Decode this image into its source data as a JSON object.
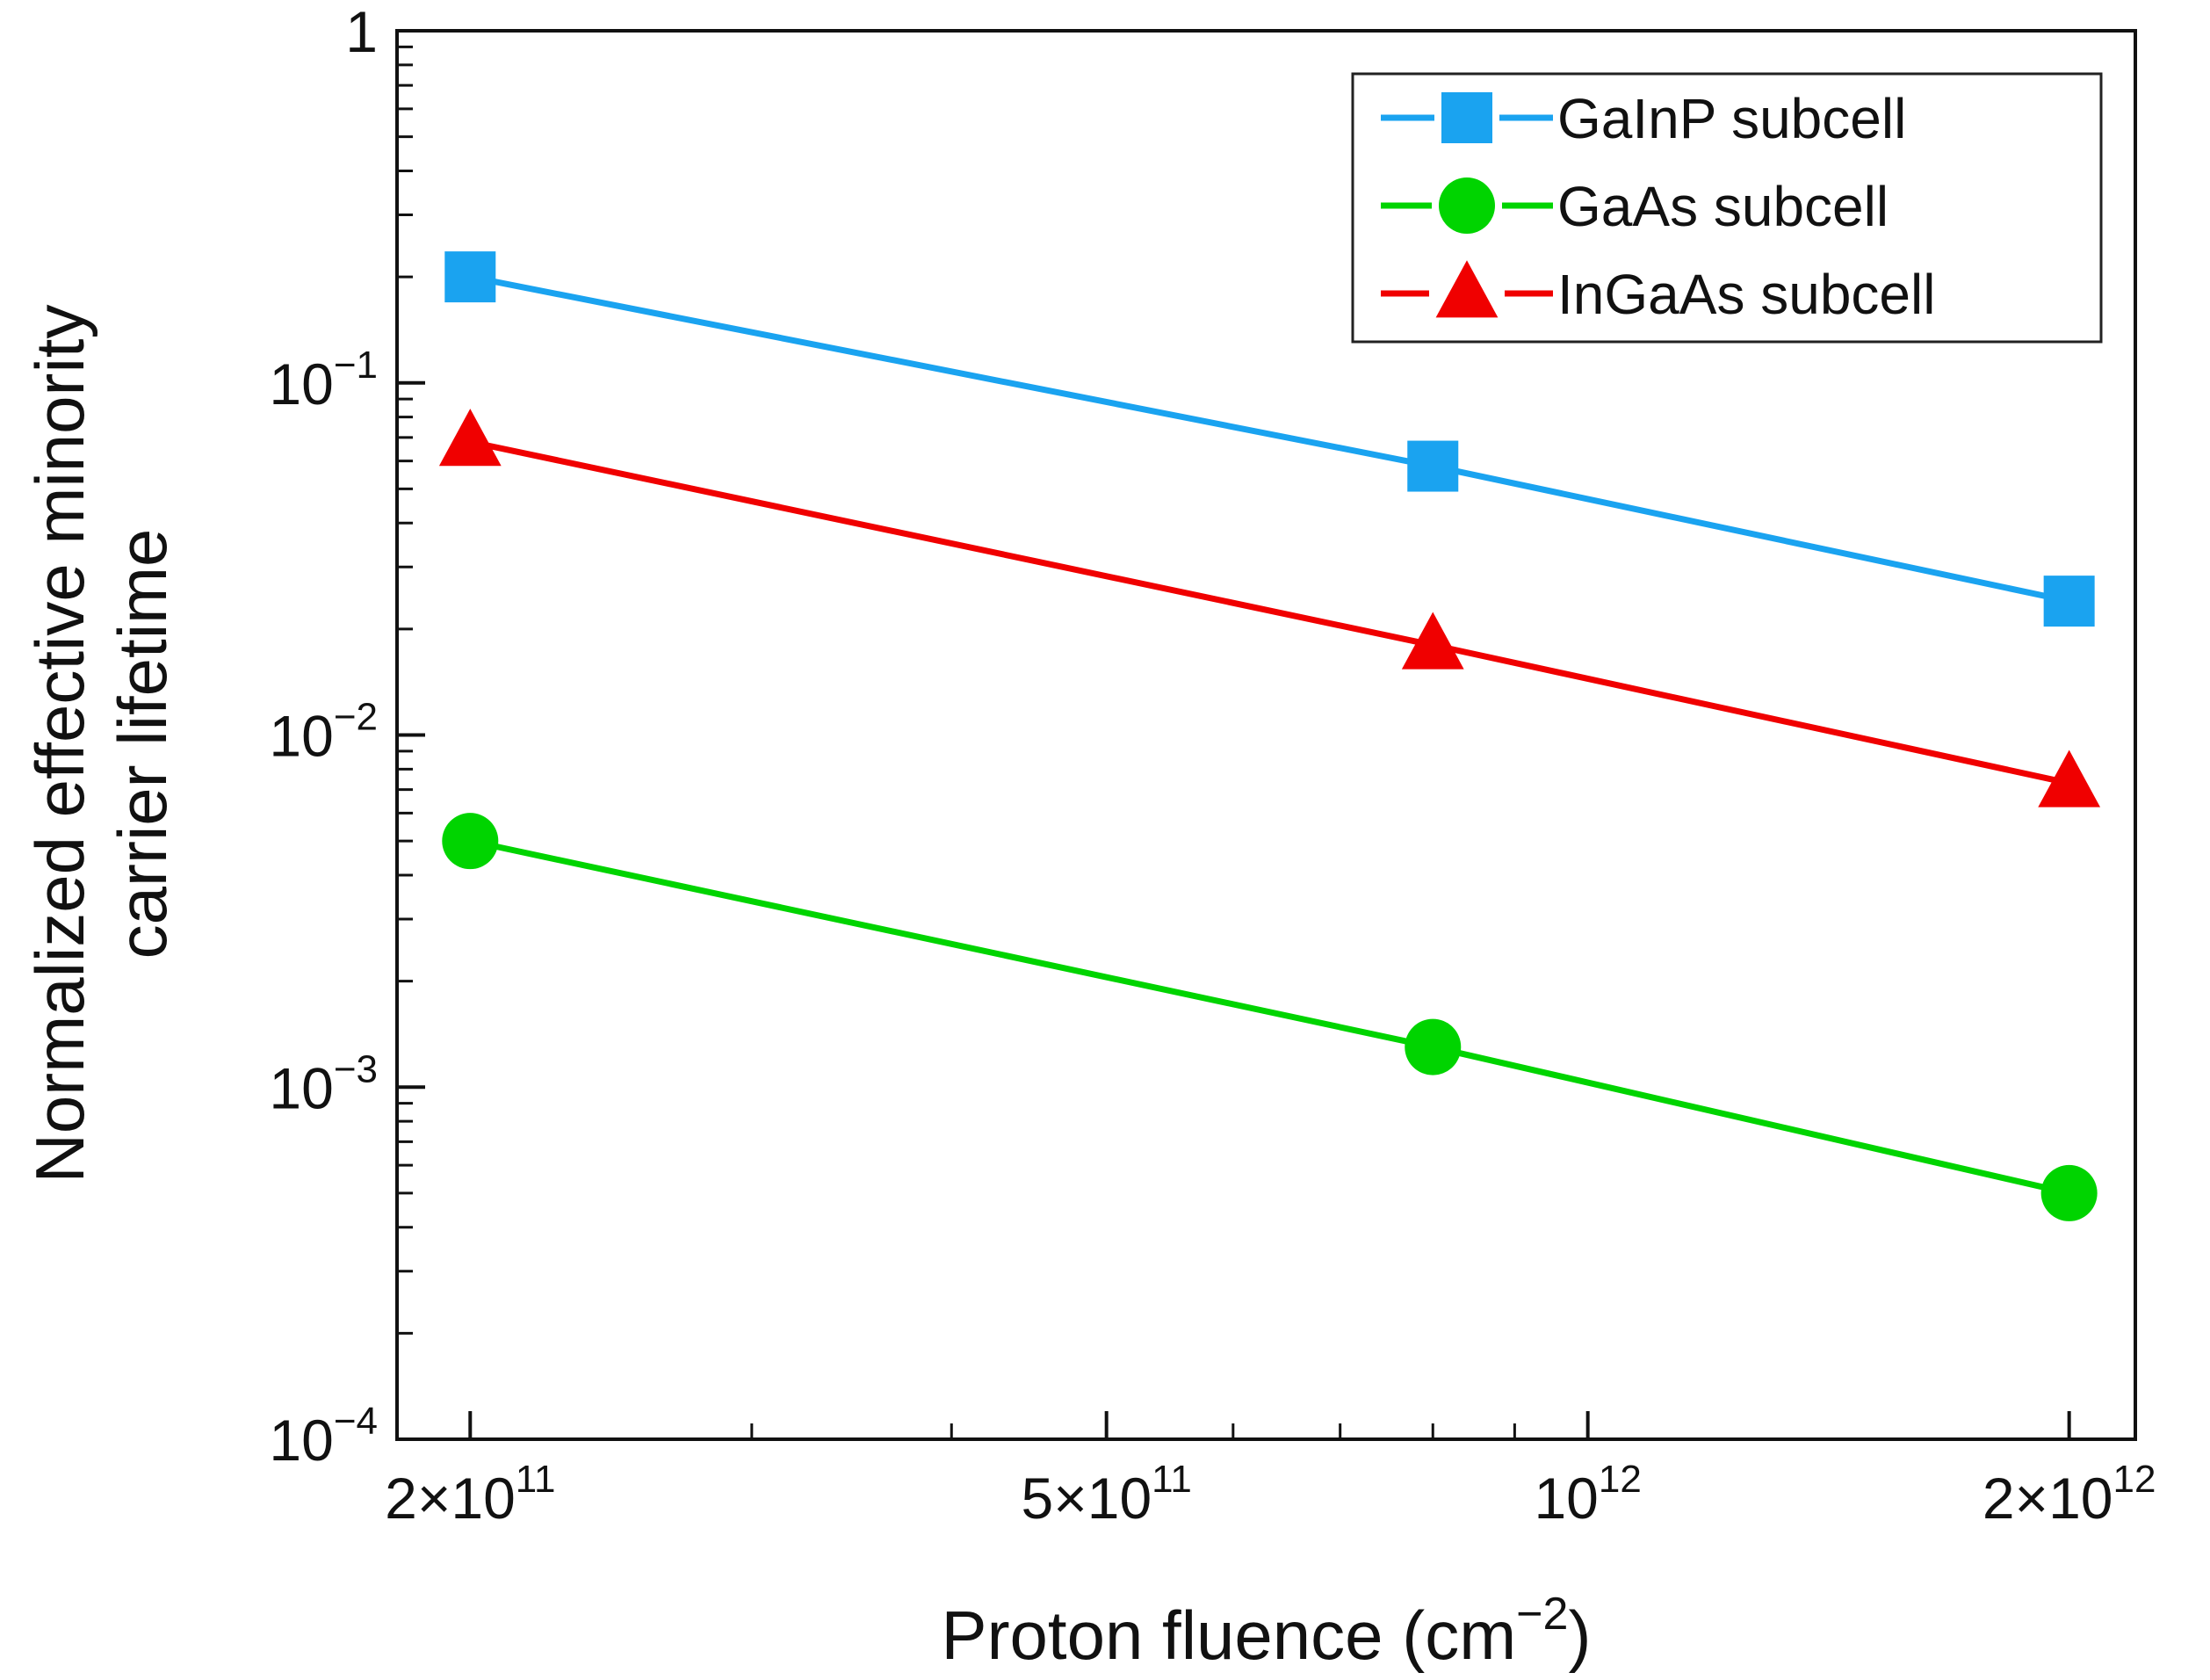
{
  "chart_data": {
    "type": "line",
    "title": "",
    "xlabel": {
      "main": "Proton fluence (cm",
      "sup": "−2",
      "close": ")"
    },
    "ylabel": [
      "Normalized effective minority",
      "carrier lifetime"
    ],
    "xscale": "log",
    "yscale": "log",
    "xlim": [
      180000000000.0,
      2200000000000.0
    ],
    "ylim": [
      0.0001,
      1
    ],
    "x_ticks": [
      {
        "value": 200000000000.0,
        "base": "2×10",
        "exp": "11"
      },
      {
        "value": 500000000000.0,
        "base": "5×10",
        "exp": "11"
      },
      {
        "value": 1000000000000.0,
        "base": "10",
        "exp": "12"
      },
      {
        "value": 2000000000000.0,
        "base": "2×10",
        "exp": "12"
      }
    ],
    "y_ticks": [
      {
        "value": 1,
        "base": "1",
        "exp": ""
      },
      {
        "value": 0.1,
        "base": "10",
        "exp": "−1"
      },
      {
        "value": 0.01,
        "base": "10",
        "exp": "−2"
      },
      {
        "value": 0.001,
        "base": "10",
        "exp": "−3"
      },
      {
        "value": 0.0001,
        "base": "10",
        "exp": "−4"
      }
    ],
    "x": [
      200000000000.0,
      800000000000.0,
      2000000000000.0
    ],
    "series": [
      {
        "name": "GaInP subcell",
        "marker": "square",
        "color": "#1aa3f0",
        "values": [
          0.2,
          0.058,
          0.024
        ]
      },
      {
        "name": "GaAs subcell",
        "marker": "circle",
        "color": "#00d400",
        "values": [
          0.005,
          0.0013,
          0.0005
        ]
      },
      {
        "name": "InGaAs subcell",
        "marker": "triangle",
        "color": "#f00000",
        "values": [
          0.068,
          0.018,
          0.0073
        ]
      }
    ],
    "legend": {
      "position": "top-right"
    },
    "grid": false
  }
}
